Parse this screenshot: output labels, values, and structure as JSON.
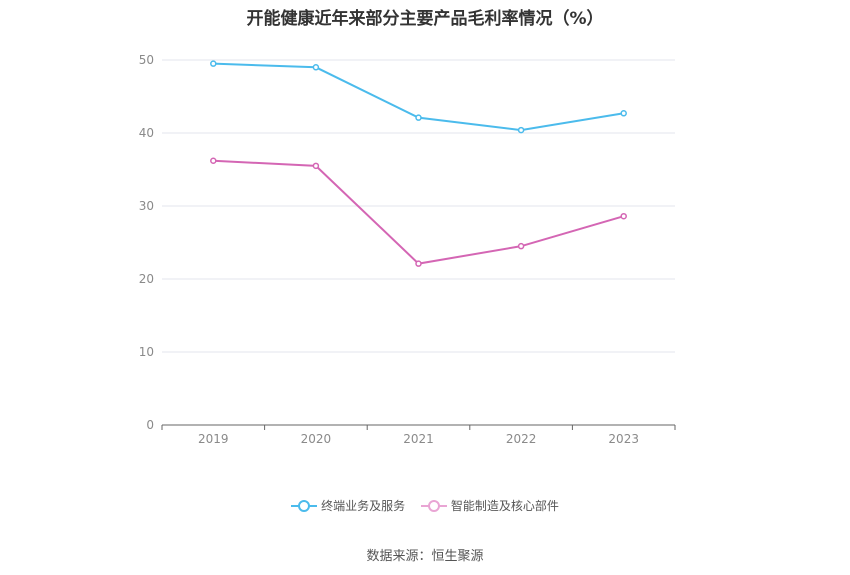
{
  "chart_data": {
    "type": "line",
    "title": "开能健康近年来部分主要产品毛利率情况（%）",
    "categories": [
      "2019",
      "2020",
      "2021",
      "2022",
      "2023"
    ],
    "series": [
      {
        "name": "终端业务及服务",
        "values": [
          49.5,
          49.0,
          42.1,
          40.4,
          42.7
        ],
        "color": "#4bbbec"
      },
      {
        "name": "智能制造及核心部件",
        "values": [
          36.2,
          35.5,
          22.1,
          24.5,
          28.6
        ],
        "color": "#d466b4"
      }
    ],
    "yticks": [
      0,
      10,
      20,
      30,
      40,
      50
    ],
    "ylim": [
      0,
      50
    ],
    "grid": true,
    "legend_position": "bottom"
  },
  "source": "数据来源：恒生聚源"
}
